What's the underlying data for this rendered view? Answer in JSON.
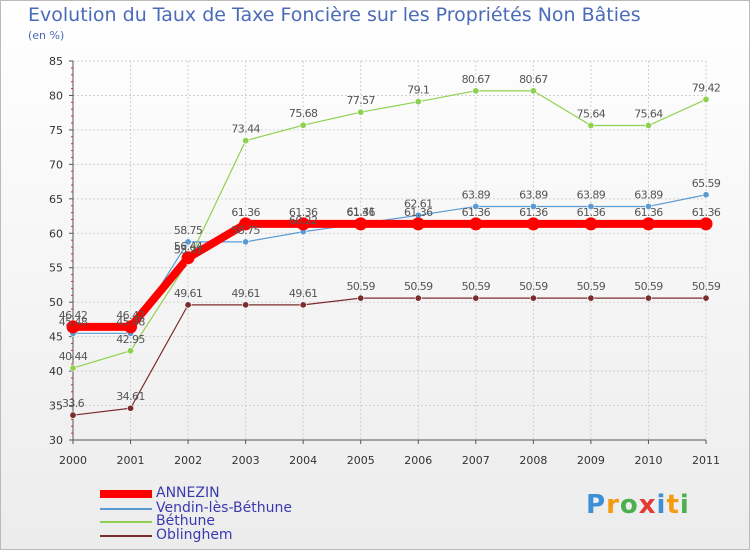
{
  "chart_data": {
    "type": "line",
    "title": "Evolution du Taux de Taxe Foncière sur les Propriétés Non Bâties",
    "ylabel": "(en %)",
    "ylim": [
      30,
      85
    ],
    "yticks": [
      "30",
      "35",
      "40",
      "45",
      "50",
      "55",
      "60",
      "65",
      "70",
      "75",
      "80",
      "85"
    ],
    "categories": [
      "2000",
      "2001",
      "2002",
      "2003",
      "2004",
      "2005",
      "2006",
      "2007",
      "2008",
      "2009",
      "2010",
      "2011"
    ],
    "series": [
      {
        "name": "ANNEZIN",
        "color": "#ff0000",
        "values": [
          46.42,
          46.42,
          56.44,
          61.36,
          61.36,
          61.36,
          61.36,
          61.36,
          61.36,
          61.36,
          61.36,
          61.36
        ],
        "labels": [
          "46.42",
          "46.42",
          "56.44",
          "61.36",
          "61.36",
          "61.36",
          "61.36",
          "61.36",
          "61.36",
          "61.36",
          "61.36",
          "61.36"
        ]
      },
      {
        "name": "Vendin-lès-Béthune",
        "color": "#5b9bd5",
        "values": [
          45.48,
          45.48,
          58.75,
          58.75,
          60.22,
          61.41,
          62.61,
          63.89,
          63.89,
          63.89,
          63.89,
          65.59
        ],
        "labels": [
          "45.48",
          "45.48",
          "58.75",
          "58.75",
          "60.22",
          "61.41",
          "62.61",
          "63.89",
          "63.89",
          "63.89",
          "63.89",
          "65.59"
        ]
      },
      {
        "name": "Béthune",
        "color": "#8fd14f",
        "values": [
          40.44,
          42.95,
          55.91,
          73.44,
          75.68,
          77.57,
          79.1,
          80.67,
          80.67,
          75.64,
          75.64,
          79.42
        ],
        "labels": [
          "40.44",
          "42.95",
          "55.91",
          "73.44",
          "75.68",
          "77.57",
          "79.1",
          "80.67",
          "80.67",
          "75.64",
          "75.64",
          "79.42"
        ]
      },
      {
        "name": "Oblinghem",
        "color": "#7b2c2c",
        "values": [
          33.6,
          34.61,
          49.61,
          49.61,
          49.61,
          50.59,
          50.59,
          50.59,
          50.59,
          50.59,
          50.59,
          50.59
        ],
        "labels": [
          "33.6",
          "34.61",
          "49.61",
          "49.61",
          "49.61",
          "50.59",
          "50.59",
          "50.59",
          "50.59",
          "50.59",
          "50.59",
          "50.59"
        ]
      }
    ]
  },
  "logo": {
    "letters": [
      "P",
      "r",
      "o",
      "x",
      "i",
      "t",
      "i"
    ],
    "colors": [
      "#3d8fd8",
      "#f39c12",
      "#4caf50",
      "#e53935",
      "#3d8fd8",
      "#f39c12",
      "#4caf50"
    ]
  }
}
